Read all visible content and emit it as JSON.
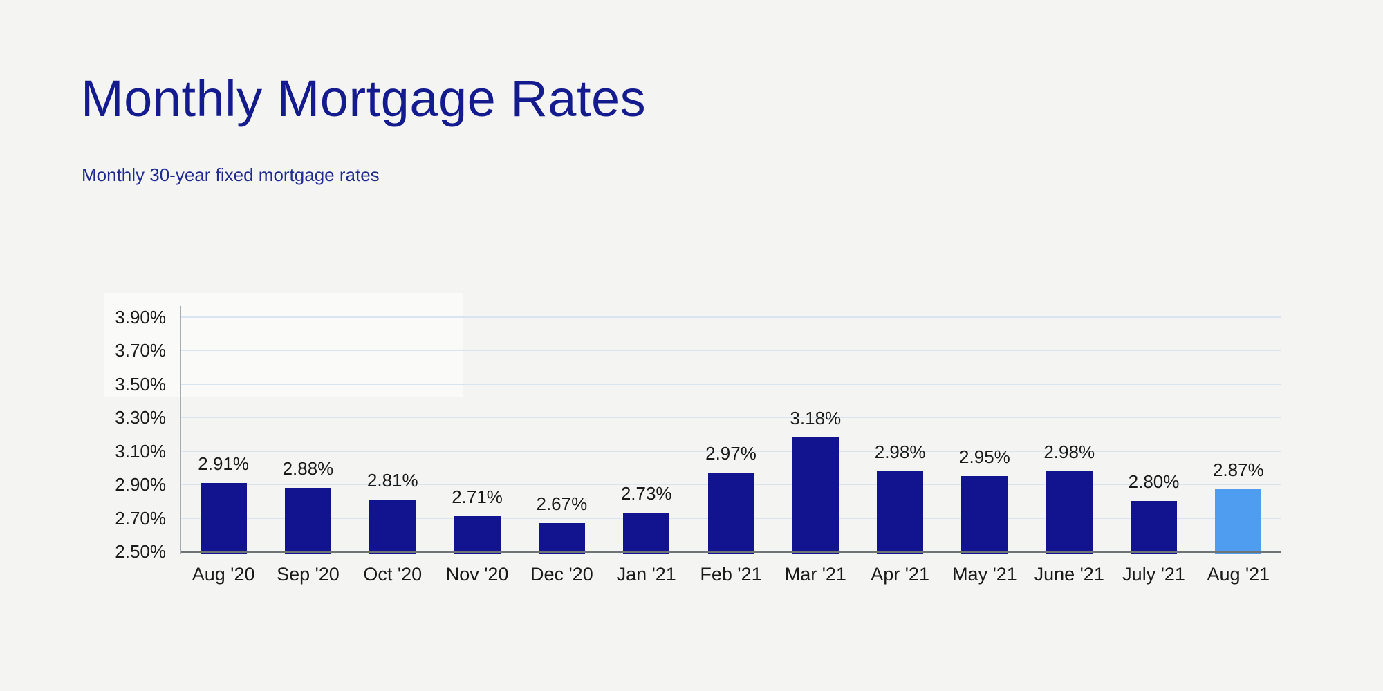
{
  "page": {
    "background_color": "#f4f4f3"
  },
  "header": {
    "title": "Monthly Mortgage Rates",
    "subtitle": "Monthly 30-year fixed mortgage rates",
    "title_color": "#141b8e",
    "subtitle_color": "#1f2b8f"
  },
  "chart_data": {
    "type": "bar",
    "title": "Monthly Mortgage Rates",
    "subtitle": "Monthly 30-year fixed mortgage rates",
    "categories": [
      "Aug '20",
      "Sep '20",
      "Oct '20",
      "Nov '20",
      "Dec '20",
      "Jan '21",
      "Feb '21",
      "Mar '21",
      "Apr '21",
      "May '21",
      "June '21",
      "July '21",
      "Aug '21"
    ],
    "values": [
      2.91,
      2.88,
      2.81,
      2.71,
      2.67,
      2.73,
      2.97,
      3.18,
      2.98,
      2.95,
      2.98,
      2.8,
      2.87
    ],
    "value_labels": [
      "2.91%",
      "2.88%",
      "2.81%",
      "2.71%",
      "2.67%",
      "2.73%",
      "2.97%",
      "3.18%",
      "2.98%",
      "2.95%",
      "2.98%",
      "2.80%",
      "2.87%"
    ],
    "highlighted_index": 12,
    "xlabel": "",
    "ylabel": "",
    "ylim": [
      2.5,
      3.96
    ],
    "y_ticks": [
      {
        "value": 2.5,
        "label": "2.50%"
      },
      {
        "value": 2.7,
        "label": "2.70%"
      },
      {
        "value": 2.9,
        "label": "2.90%"
      },
      {
        "value": 3.1,
        "label": "3.10%"
      },
      {
        "value": 3.3,
        "label": "3.30%"
      },
      {
        "value": 3.5,
        "label": "3.50%"
      },
      {
        "value": 3.7,
        "label": "3.70%"
      },
      {
        "value": 3.9,
        "label": "3.90%"
      }
    ],
    "grid": true,
    "legend": "none",
    "colors": {
      "bar": "#12148f",
      "highlight": "#4f9df1",
      "gridline": "#d8e5f1",
      "x_axis_line": "#6f7477",
      "y_axis_line": "#a5adb2",
      "label_text": "#1a1a1a"
    }
  }
}
